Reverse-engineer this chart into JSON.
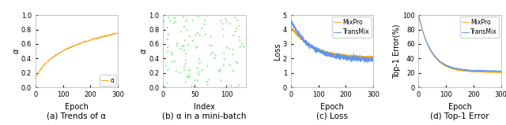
{
  "fig_width": 6.4,
  "fig_height": 1.59,
  "dpi": 100,
  "captions": [
    "(a) Trends of α",
    "(b) α in a mini-batch",
    "(c) Loss",
    "(d) Top-1 Error"
  ],
  "panel_a": {
    "xlabel": "Epoch",
    "ylabel": "α",
    "xlim": [
      0,
      300
    ],
    "ylim": [
      0.0,
      1.0
    ],
    "yticks": [
      0.0,
      0.2,
      0.4,
      0.6,
      0.8,
      1.0
    ],
    "xticks": [
      0,
      100,
      200,
      300
    ],
    "line_color": "#f5a623",
    "legend_label": "α",
    "seed": 42
  },
  "panel_b": {
    "xlabel": "Index",
    "ylabel": "α",
    "xlim": [
      0,
      130
    ],
    "ylim": [
      0.0,
      1.0
    ],
    "yticks": [
      0.0,
      0.2,
      0.4,
      0.6,
      0.8,
      1.0
    ],
    "xticks": [
      0,
      50,
      100
    ],
    "scatter_color": "#90EE90",
    "n_points": 120,
    "seed": 77
  },
  "panel_c": {
    "xlabel": "Epoch",
    "ylabel": "Loss",
    "xlim": [
      0,
      300
    ],
    "ylim": [
      0,
      5
    ],
    "yticks": [
      0,
      1,
      2,
      3,
      4,
      5
    ],
    "xticks": [
      0,
      100,
      200,
      300
    ],
    "mixpro_color": "#f5a623",
    "transmix_color": "#6495ED",
    "legend_labels": [
      "MixPro",
      "TransMix"
    ],
    "seed": 7
  },
  "panel_d": {
    "xlabel": "Epoch",
    "ylabel": "Top-1 Error(%)",
    "xlim": [
      0,
      300
    ],
    "ylim": [
      0,
      100
    ],
    "yticks": [
      0,
      20,
      40,
      60,
      80,
      100
    ],
    "xticks": [
      0,
      100,
      200,
      300
    ],
    "mixpro_color": "#f5a623",
    "transmix_color": "#6495ED",
    "legend_labels": [
      "MixPro",
      "TransMix"
    ],
    "seed": 11
  },
  "caption_fontsize": 7.5,
  "axis_label_fontsize": 7,
  "tick_fontsize": 6,
  "legend_fontsize": 5.5,
  "background_color": "#ffffff"
}
